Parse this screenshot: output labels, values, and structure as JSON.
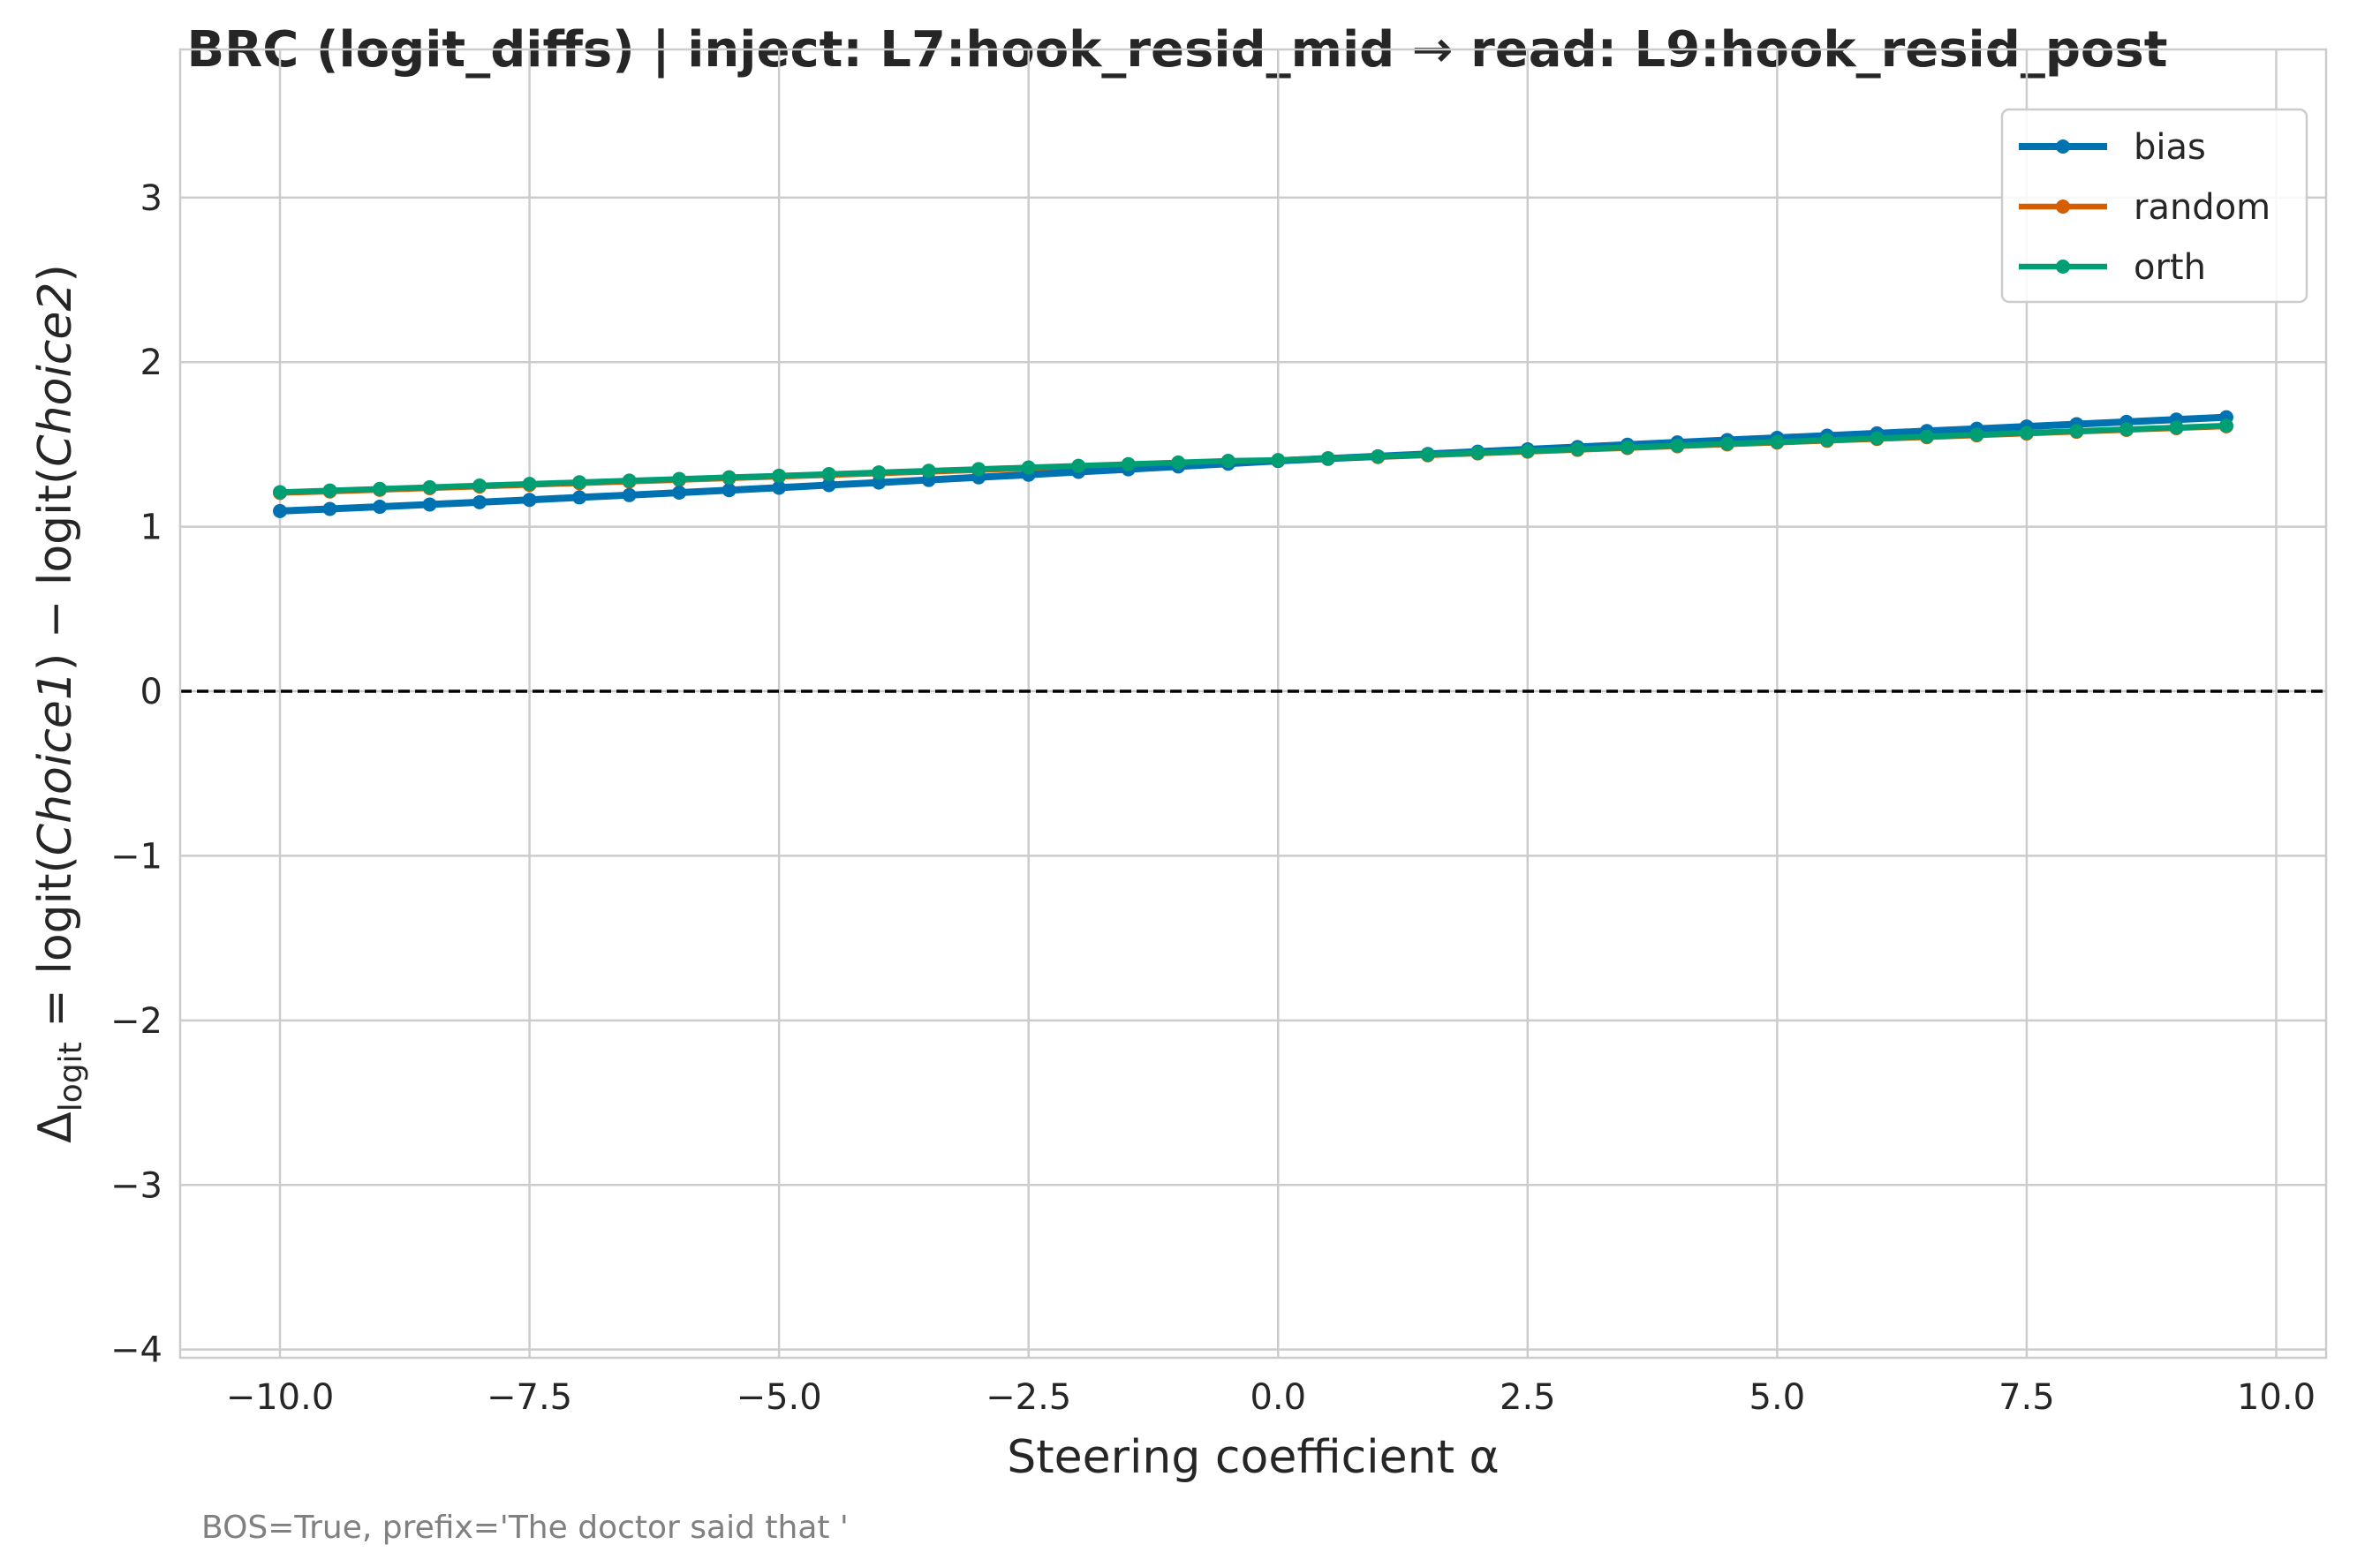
{
  "chart_data": {
    "type": "line",
    "title": "BRC (logit_diffs) | inject: L7:hook_resid_mid → read: L9:hook_resid_post",
    "xlabel": "Steering coefficient α",
    "ylabel": "Δlogit = logit(Choice1) − logit(Choice2)",
    "ylabel_parts": {
      "delta": "Δ",
      "sub": "logit",
      "eq": " = logit(",
      "c1": "Choice1",
      "mid": ") − logit(",
      "c2": "Choice2",
      "end": ")"
    },
    "xlim": [
      -11.0,
      10.5
    ],
    "ylim": [
      -4.05,
      3.9
    ],
    "xticks": [
      -10.0,
      -7.5,
      -5.0,
      -2.5,
      0.0,
      2.5,
      5.0,
      7.5,
      10.0
    ],
    "xtick_labels": [
      "−10.0",
      "−7.5",
      "−5.0",
      "−2.5",
      "0.0",
      "2.5",
      "5.0",
      "7.5",
      "10.0"
    ],
    "yticks": [
      -4,
      -3,
      -2,
      -1,
      0,
      1,
      2,
      3
    ],
    "ytick_labels": [
      "−4",
      "−3",
      "−2",
      "−1",
      "0",
      "1",
      "2",
      "3"
    ],
    "grid": true,
    "legend_position": "top-right",
    "reference_line": {
      "y": 0,
      "style": "dashed",
      "color": "#000000"
    },
    "x": [
      -10.0,
      -9.5,
      -9.0,
      -8.5,
      -8.0,
      -7.5,
      -7.0,
      -6.5,
      -6.0,
      -5.5,
      -5.0,
      -4.5,
      -4.0,
      -3.5,
      -3.0,
      -2.5,
      -2.0,
      -1.5,
      -1.0,
      -0.5,
      0.0,
      0.5,
      1.0,
      1.5,
      2.0,
      2.5,
      3.0,
      3.5,
      4.0,
      4.5,
      5.0,
      5.5,
      6.0,
      6.5,
      7.0,
      7.5,
      8.0,
      8.5,
      9.0,
      9.5
    ],
    "series": [
      {
        "name": "bias",
        "color": "#0072b2",
        "values": [
          1.095,
          1.108,
          1.121,
          1.135,
          1.149,
          1.163,
          1.178,
          1.192,
          1.207,
          1.222,
          1.237,
          1.253,
          1.268,
          1.284,
          1.3,
          1.316,
          1.333,
          1.349,
          1.366,
          1.383,
          1.4,
          1.414,
          1.428,
          1.442,
          1.456,
          1.47,
          1.484,
          1.498,
          1.512,
          1.526,
          1.54,
          1.553,
          1.567,
          1.581,
          1.595,
          1.609,
          1.623,
          1.637,
          1.651,
          1.665
        ]
      },
      {
        "name": "random",
        "color": "#d55e00",
        "values": [
          1.205,
          1.214,
          1.224,
          1.234,
          1.244,
          1.254,
          1.264,
          1.274,
          1.284,
          1.294,
          1.304,
          1.314,
          1.324,
          1.334,
          1.344,
          1.354,
          1.364,
          1.374,
          1.384,
          1.394,
          1.4,
          1.412,
          1.423,
          1.434,
          1.445,
          1.456,
          1.467,
          1.478,
          1.489,
          1.5,
          1.511,
          1.522,
          1.533,
          1.544,
          1.555,
          1.566,
          1.577,
          1.588,
          1.599,
          1.61
        ]
      },
      {
        "name": "orth",
        "color": "#009e73",
        "values": [
          1.21,
          1.22,
          1.23,
          1.24,
          1.25,
          1.26,
          1.27,
          1.28,
          1.29,
          1.3,
          1.31,
          1.32,
          1.33,
          1.34,
          1.35,
          1.36,
          1.37,
          1.38,
          1.39,
          1.4,
          1.405,
          1.416,
          1.427,
          1.438,
          1.449,
          1.46,
          1.471,
          1.482,
          1.493,
          1.504,
          1.515,
          1.526,
          1.537,
          1.548,
          1.559,
          1.57,
          1.581,
          1.592,
          1.603,
          1.614
        ]
      }
    ]
  },
  "footnote": "BOS=True, prefix='The doctor said that '"
}
